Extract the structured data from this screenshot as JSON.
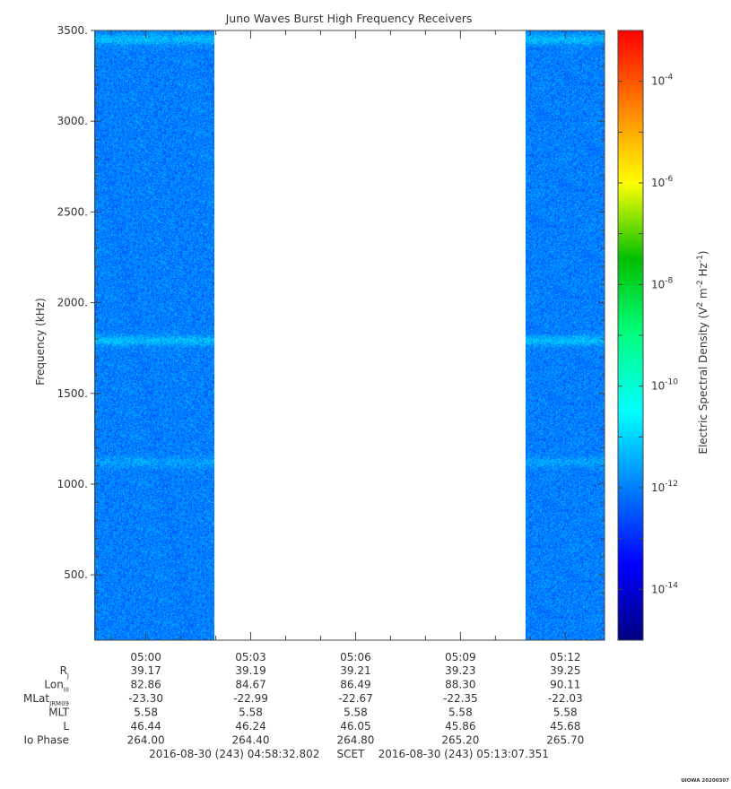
{
  "chart_data": {
    "type": "heatmap",
    "title": "Juno Waves Burst High Frequency Receivers",
    "ylabel": "Frequency (kHz)",
    "colorbar_label_parts": [
      "Electric Spectral Density (V",
      "2",
      " m",
      "-2",
      " Hz",
      "-1",
      ")"
    ],
    "ylim": [
      140,
      3500
    ],
    "yticks": [
      500,
      1000,
      1500,
      2000,
      2500,
      3000,
      3500
    ],
    "ytick_labels": [
      "500.",
      "1000.",
      "1500.",
      "2000.",
      "2500.",
      "3000.",
      "3500."
    ],
    "x_range": [
      "04:58:32.802",
      "05:13:07.351"
    ],
    "xticks": [
      "05:00",
      "05:03",
      "05:06",
      "05:09",
      "05:12"
    ],
    "data_intervals": [
      {
        "start": "04:58:32",
        "end": "05:01:57"
      },
      {
        "start": "05:10:52",
        "end": "05:13:07"
      }
    ],
    "gap_interval": {
      "start": "05:01:57",
      "end": "05:10:52"
    },
    "background_level": 1e-12,
    "enhanced_bands_khz": [
      {
        "center": 1790,
        "level": 5e-12
      },
      {
        "center": 3450,
        "level": 5e-12
      },
      {
        "center": 1120,
        "level": 2.5e-12
      }
    ],
    "colorbar": {
      "scale": "log",
      "range": [
        1e-15,
        0.001
      ],
      "tick_exponents": [
        -14,
        -12,
        -10,
        -8,
        -6,
        -4
      ],
      "tick_base": "10",
      "colormap": [
        "#000080",
        "#0000ff",
        "#0080ff",
        "#00ffff",
        "#00ff80",
        "#00c000",
        "#ffff00",
        "#ff8000",
        "#ff0000"
      ]
    },
    "ephemeris": {
      "rows": [
        {
          "label": "R",
          "sub": "J",
          "values": [
            "39.17",
            "39.19",
            "39.21",
            "39.23",
            "39.25"
          ]
        },
        {
          "label": "Lon",
          "sub": "III",
          "values": [
            "82.86",
            "84.67",
            "86.49",
            "88.30",
            "90.11"
          ]
        },
        {
          "label": "MLat",
          "sub": "JRM09",
          "values": [
            "-23.30",
            "-22.99",
            "-22.67",
            "-22.35",
            "-22.03"
          ]
        },
        {
          "label": "MLT",
          "sub": "",
          "values": [
            "5.58",
            "5.58",
            "5.58",
            "5.58",
            "5.58"
          ]
        },
        {
          "label": "L",
          "sub": "",
          "values": [
            "46.44",
            "46.24",
            "46.05",
            "45.86",
            "45.68"
          ]
        },
        {
          "label": "Io Phase",
          "sub": "",
          "values": [
            "264.00",
            "264.40",
            "264.80",
            "265.20",
            "265.70"
          ]
        }
      ]
    },
    "time_range_text": "2016-08-30 (243) 04:58:32.802     SCET    2016-08-30 (243) 05:13:07.351",
    "footer_tag": "UIOWA 20200307"
  }
}
